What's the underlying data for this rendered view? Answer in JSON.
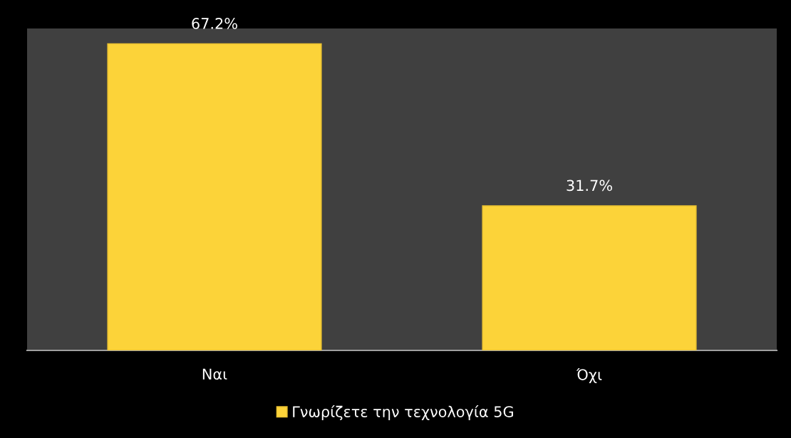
{
  "chart_data": {
    "type": "bar",
    "categories": [
      "Ναι",
      "Όχι"
    ],
    "series": [
      {
        "name": "Γνωρίζετε την τεχνολογία 5G",
        "color": "#fcd339",
        "values": [
          67.2,
          31.7
        ],
        "value_labels": [
          "67.2%",
          "31.7%"
        ]
      }
    ],
    "legend": "bottom",
    "grid": false
  }
}
